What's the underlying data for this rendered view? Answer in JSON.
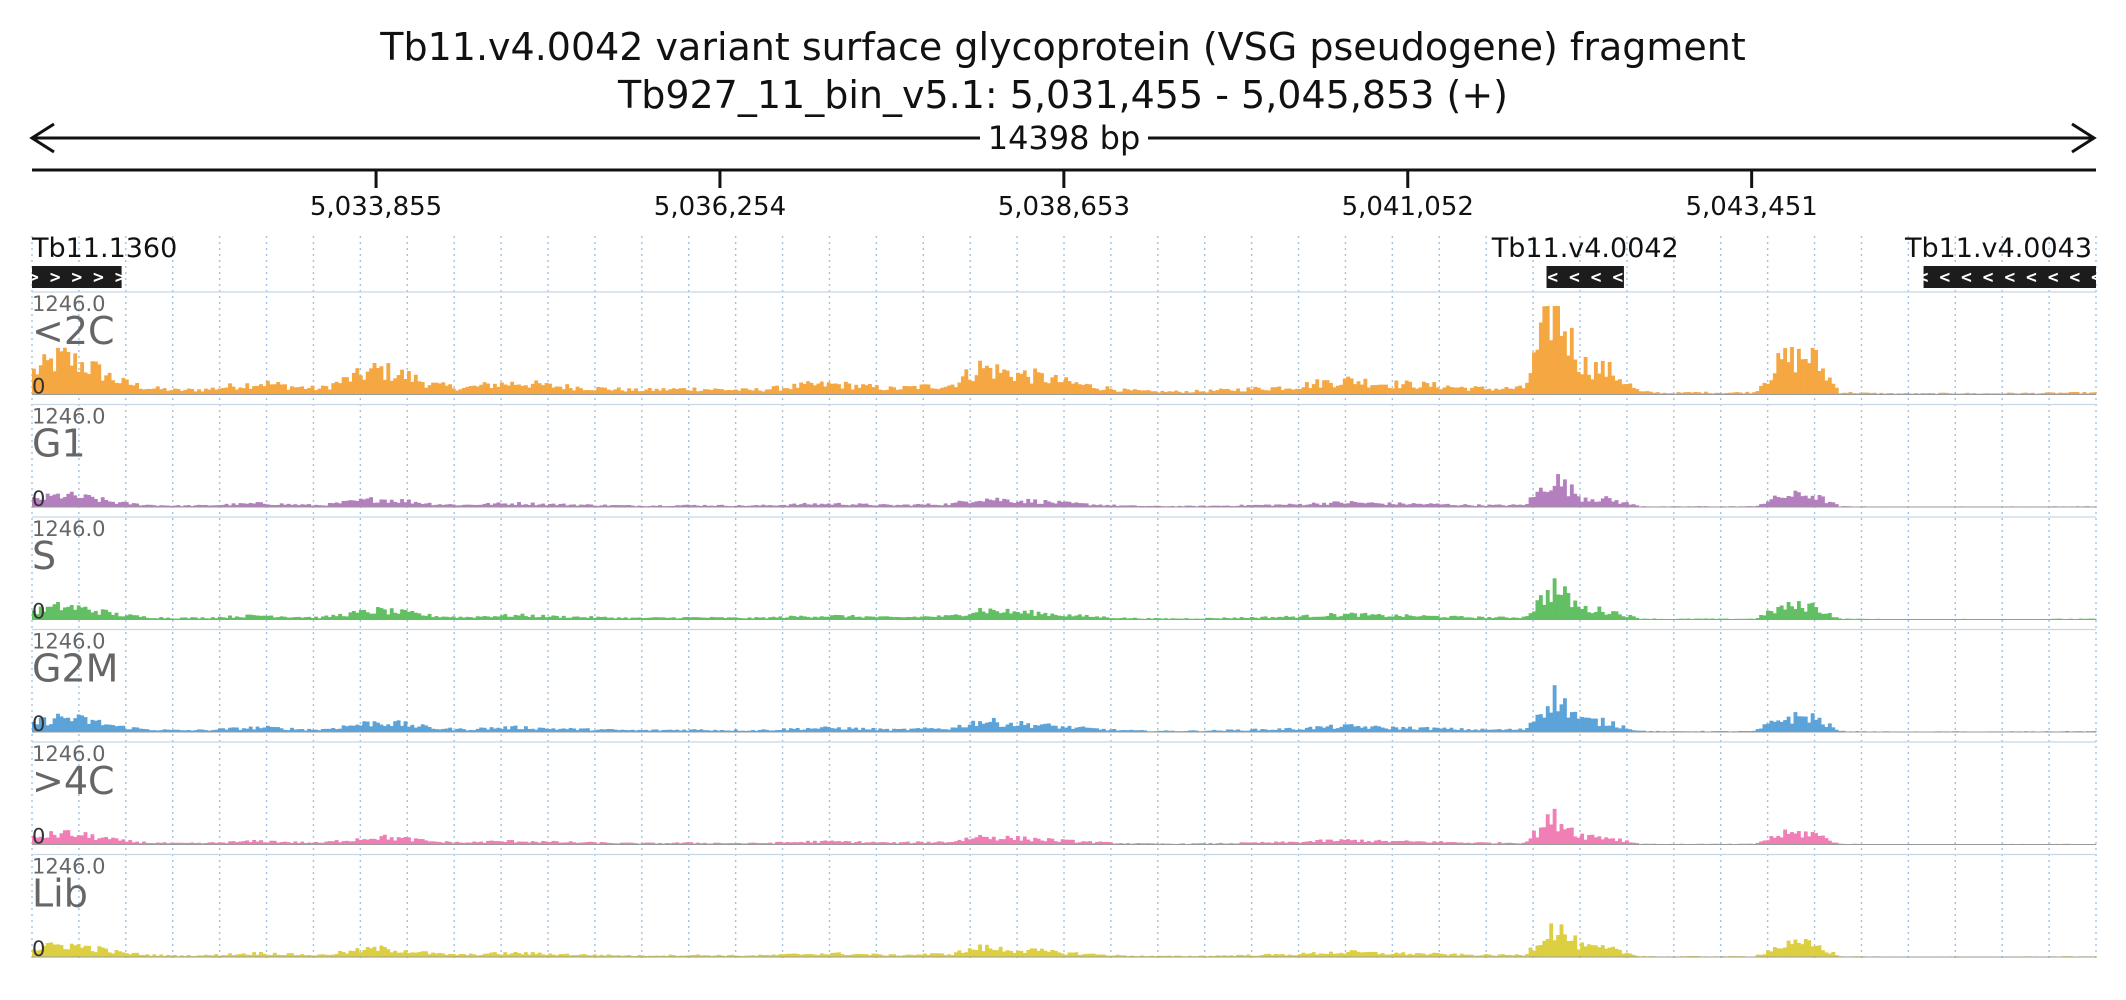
{
  "chart_data": {
    "type": "area",
    "title": "Tb11.v4.0042  variant surface glycoprotein (VSG  pseudogene)  fragment",
    "subtitle": "Tb927_11_bin_v5.1: 5,031,455 - 5,045,853 (+)",
    "span_label": "14398 bp",
    "x_range": [
      5031455,
      5045853
    ],
    "ticks": [
      {
        "value": 5033855,
        "label": "5,033,855"
      },
      {
        "value": 5036254,
        "label": "5,036,254"
      },
      {
        "value": 5038653,
        "label": "5,038,653"
      },
      {
        "value": 5041052,
        "label": "5,041,052"
      },
      {
        "value": 5043451,
        "label": "5,043,451"
      }
    ],
    "grid": true,
    "genes": [
      {
        "name": "Tb11.1360",
        "start": 5031455,
        "end": 5032080,
        "strand": "+",
        "arrows": "> > > > >"
      },
      {
        "name": "Tb11.v4.0042",
        "start": 5042020,
        "end": 5042560,
        "strand": "-",
        "arrows": "< < < <"
      },
      {
        "name": "Tb11.v4.0043",
        "start": 5044650,
        "end": 5045853,
        "strand": "-",
        "arrows": "< < < < < < < < < < < < <"
      }
    ],
    "ylim": [
      0,
      1246.0
    ],
    "y_max_label": "1246.0",
    "y_min_label": "0",
    "tracks": [
      {
        "name": "<2C",
        "color": "#f5a742",
        "gain": 1.0
      },
      {
        "name": "G1",
        "color": "#b47fbf",
        "gain": 0.32
      },
      {
        "name": "S",
        "color": "#63bf63",
        "gain": 0.36
      },
      {
        "name": "G2M",
        "color": "#5ba3d9",
        "gain": 0.4
      },
      {
        "name": ">4C",
        "color": "#f07fb6",
        "gain": 0.3
      },
      {
        "name": "Lib",
        "color": "#dccf42",
        "gain": 0.34
      }
    ],
    "profile_bin_bp": 200,
    "profile_reference": [
      [
        5031455,
        320
      ],
      [
        5031655,
        520
      ],
      [
        5031855,
        380
      ],
      [
        5032055,
        180
      ],
      [
        5032255,
        90
      ],
      [
        5032455,
        60
      ],
      [
        5032655,
        70
      ],
      [
        5032855,
        120
      ],
      [
        5033055,
        160
      ],
      [
        5033255,
        110
      ],
      [
        5033455,
        80
      ],
      [
        5033655,
        220
      ],
      [
        5033855,
        350
      ],
      [
        5034055,
        260
      ],
      [
        5034255,
        130
      ],
      [
        5034455,
        90
      ],
      [
        5034655,
        140
      ],
      [
        5034855,
        160
      ],
      [
        5035055,
        120
      ],
      [
        5035255,
        100
      ],
      [
        5035455,
        80
      ],
      [
        5035655,
        60
      ],
      [
        5035855,
        70
      ],
      [
        5036055,
        80
      ],
      [
        5036255,
        70
      ],
      [
        5036455,
        60
      ],
      [
        5036655,
        90
      ],
      [
        5036855,
        130
      ],
      [
        5037055,
        140
      ],
      [
        5037255,
        110
      ],
      [
        5037455,
        80
      ],
      [
        5037655,
        110
      ],
      [
        5037855,
        130
      ],
      [
        5038055,
        380
      ],
      [
        5038255,
        300
      ],
      [
        5038455,
        250
      ],
      [
        5038655,
        170
      ],
      [
        5038855,
        110
      ],
      [
        5039055,
        60
      ],
      [
        5039255,
        40
      ],
      [
        5039455,
        40
      ],
      [
        5039655,
        50
      ],
      [
        5039855,
        70
      ],
      [
        5040055,
        90
      ],
      [
        5040255,
        110
      ],
      [
        5040455,
        170
      ],
      [
        5040655,
        200
      ],
      [
        5040855,
        150
      ],
      [
        5041055,
        140
      ],
      [
        5041255,
        120
      ],
      [
        5041455,
        90
      ],
      [
        5041655,
        80
      ],
      [
        5041855,
        90
      ],
      [
        5042055,
        1246
      ],
      [
        5042255,
        420
      ],
      [
        5042455,
        320
      ],
      [
        5042655,
        40
      ],
      [
        5042855,
        20
      ],
      [
        5043055,
        30
      ],
      [
        5043255,
        25
      ],
      [
        5043455,
        30
      ],
      [
        5043655,
        480
      ],
      [
        5043855,
        540
      ],
      [
        5044055,
        30
      ],
      [
        5044255,
        20
      ],
      [
        5044455,
        15
      ],
      [
        5044655,
        15
      ],
      [
        5044855,
        20
      ],
      [
        5045055,
        15
      ],
      [
        5045255,
        20
      ],
      [
        5045455,
        20
      ],
      [
        5045655,
        25
      ]
    ]
  }
}
